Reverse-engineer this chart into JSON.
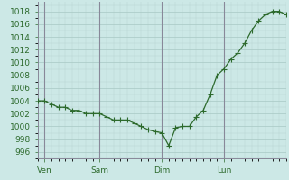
{
  "y_vals": [
    1004,
    1004,
    1003.5,
    1003,
    1003,
    1002.5,
    1002.5,
    1002,
    1002,
    1002,
    1001.5,
    1001,
    1001,
    1001,
    1000.5,
    1000,
    999.5,
    999.2,
    999.0,
    997.0,
    999.8,
    1000,
    1000,
    1001.5,
    1002.5,
    1005,
    1008,
    1009,
    1010.5,
    1011.5,
    1013,
    1015,
    1016.5,
    1017.5,
    1018,
    1018,
    1017.5
  ],
  "xtick_positions": [
    1,
    9,
    18,
    27
  ],
  "xtick_labels": [
    "Ven",
    "Sam",
    "Dim",
    "Lun"
  ],
  "vline_positions": [
    1,
    9,
    18,
    27
  ],
  "ylim": [
    995.0,
    1019.5
  ],
  "xlim": [
    0,
    36
  ],
  "ytick_vals": [
    996,
    998,
    1000,
    1002,
    1004,
    1006,
    1008,
    1010,
    1012,
    1014,
    1016,
    1018
  ],
  "line_color": "#2d6a2d",
  "marker_color": "#2d6a2d",
  "bg_color": "#cce8e6",
  "grid_major_color": "#a8c8c4",
  "grid_minor_color": "#b8d4d0",
  "vline_color": "#888899",
  "tick_color": "#2d6a2d",
  "spine_color": "#888899",
  "marker": "+",
  "markersize": 4.0,
  "linewidth": 0.9
}
